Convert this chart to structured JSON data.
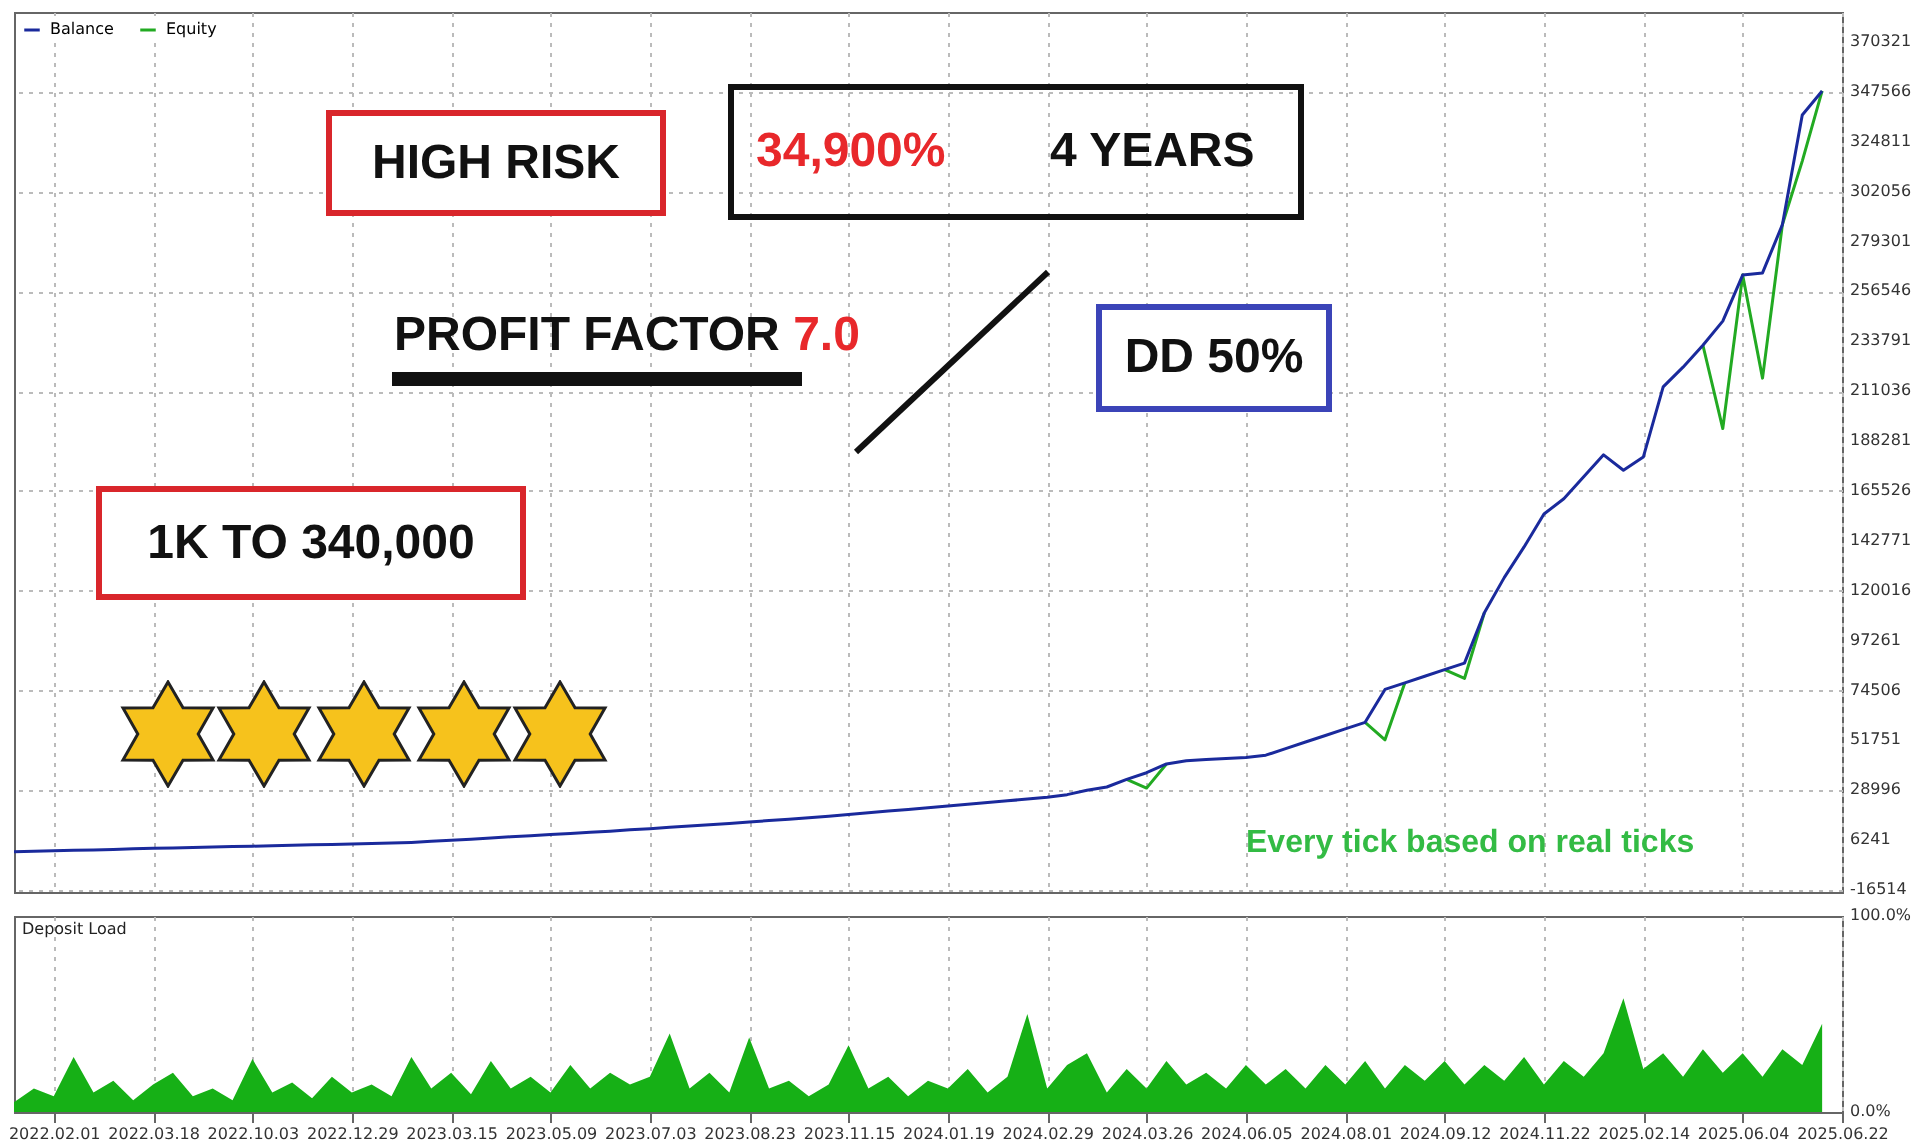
{
  "chart_data": [
    {
      "type": "line",
      "legend": "top left",
      "grid": true,
      "tick_labels": "y",
      "ylim": [
        -17400,
        384000
      ],
      "categories": [
        null,
        null,
        "2022.02.01",
        null,
        null,
        null,
        null,
        "2022.03.18",
        null,
        null,
        null,
        null,
        "2022.10.03",
        null,
        null,
        null,
        null,
        "2022.12.29",
        null,
        null,
        null,
        null,
        "2023.03.15",
        null,
        null,
        null,
        null,
        "2023.05.09",
        null,
        null,
        null,
        null,
        "2023.07.03",
        null,
        null,
        null,
        null,
        "2023.08.23",
        null,
        null,
        null,
        null,
        "2023.11.15",
        null,
        null,
        null,
        null,
        "2024.01.19",
        null,
        null,
        null,
        null,
        "2024.02.29",
        null,
        null,
        null,
        null,
        "2024.03.26",
        null,
        null,
        null,
        null,
        "2024.06.05",
        null,
        null,
        null,
        null,
        "2024.08.01",
        null,
        null,
        null,
        null,
        "2024.09.12",
        null,
        null,
        null,
        null,
        "2024.11.22",
        null,
        null,
        null,
        null,
        "2025.02.14",
        null,
        null,
        null,
        null,
        "2025.06.04",
        null,
        null,
        null,
        null,
        "2025.06.22"
      ],
      "yticks": [
        -16514,
        6241,
        28996,
        51751,
        74506,
        97261,
        120016,
        142771,
        165526,
        188281,
        211036,
        233791,
        256546,
        279301,
        302056,
        324811,
        347566,
        370321
      ],
      "annotations": [
        "HIGH RISK",
        "34,900%",
        "4 YEARS",
        "PROFIT FACTOR 7.0",
        "DD 50%",
        "1K TO 340,000",
        "Every tick based on real ticks"
      ],
      "series": [
        {
          "name": "Balance",
          "color": "#1a2a9c",
          "values": [
            1000,
            1200,
            1400,
            1600,
            1800,
            2000,
            2300,
            2500,
            2700,
            2900,
            3100,
            3300,
            3500,
            3700,
            3900,
            4100,
            4300,
            4500,
            4700,
            4900,
            5200,
            5700,
            6200,
            6700,
            7200,
            7800,
            8300,
            8800,
            9300,
            9800,
            10300,
            11000,
            11500,
            12100,
            12700,
            13300,
            13900,
            14500,
            15200,
            15800,
            16500,
            17200,
            18000,
            18700,
            19500,
            20200,
            21000,
            21800,
            22600,
            23400,
            24200,
            25000,
            25800,
            27000,
            29000,
            30500,
            34000,
            37000,
            41000,
            42500,
            43000,
            43500,
            44000,
            45000,
            48000,
            51000,
            54000,
            57000,
            60000,
            75000,
            78000,
            81000,
            84000,
            87000,
            110000,
            126000,
            140000,
            155000,
            162000,
            172000,
            182000,
            175000,
            181000,
            213000,
            222000,
            232000,
            243000,
            264000,
            265000,
            287000,
            337000,
            348000,
            null
          ]
        },
        {
          "name": "Equity",
          "color": "#22aa22",
          "values": [
            null,
            null,
            null,
            null,
            null,
            null,
            null,
            null,
            null,
            null,
            null,
            null,
            null,
            null,
            null,
            null,
            null,
            null,
            null,
            null,
            null,
            null,
            null,
            null,
            null,
            null,
            null,
            null,
            null,
            null,
            null,
            null,
            null,
            null,
            null,
            null,
            null,
            null,
            null,
            null,
            null,
            null,
            null,
            null,
            null,
            null,
            null,
            null,
            null,
            null,
            null,
            null,
            null,
            null,
            null,
            null,
            34000,
            30000,
            41000,
            null,
            null,
            null,
            null,
            null,
            null,
            null,
            null,
            null,
            60000,
            52000,
            78000,
            null,
            84000,
            80000,
            110000,
            null,
            null,
            null,
            null,
            null,
            null,
            null,
            null,
            null,
            null,
            232000,
            194000,
            264000,
            217000,
            287000,
            316000,
            348000,
            null
          ]
        }
      ]
    },
    {
      "type": "area",
      "title": "Deposit Load",
      "grid": "x",
      "ylim": [
        0,
        100
      ],
      "categories": [
        null,
        null,
        "2022.02.01",
        null,
        null,
        null,
        null,
        "2022.03.18",
        null,
        null,
        null,
        null,
        "2022.10.03",
        null,
        null,
        null,
        null,
        "2022.12.29",
        null,
        null,
        null,
        null,
        "2023.03.15",
        null,
        null,
        null,
        null,
        "2023.05.09",
        null,
        null,
        null,
        null,
        "2023.07.03",
        null,
        null,
        null,
        null,
        "2023.08.23",
        null,
        null,
        null,
        null,
        "2023.11.15",
        null,
        null,
        null,
        null,
        "2024.01.19",
        null,
        null,
        null,
        null,
        "2024.02.29",
        null,
        null,
        null,
        null,
        "2024.03.26",
        null,
        null,
        null,
        null,
        "2024.06.05",
        null,
        null,
        null,
        null,
        "2024.08.01",
        null,
        null,
        null,
        null,
        "2024.09.12",
        null,
        null,
        null,
        null,
        "2024.11.22",
        null,
        null,
        null,
        null,
        "2025.02.14",
        null,
        null,
        null,
        null,
        "2025.06.04",
        null,
        null,
        null,
        null,
        "2025.06.22"
      ],
      "yticks": [
        {
          "value": 0,
          "label": "0.0%"
        },
        {
          "value": 100,
          "label": "100.0%"
        }
      ],
      "series": [
        {
          "color": "#16b016",
          "values": [
            5,
            12,
            8,
            28,
            10,
            16,
            6,
            14,
            20,
            8,
            12,
            6,
            27,
            10,
            15,
            7,
            18,
            10,
            14,
            8,
            28,
            12,
            20,
            9,
            26,
            12,
            18,
            10,
            24,
            12,
            20,
            14,
            18,
            40,
            12,
            20,
            10,
            38,
            12,
            16,
            8,
            14,
            34,
            12,
            18,
            8,
            16,
            12,
            22,
            10,
            18,
            50,
            12,
            24,
            30,
            10,
            22,
            12,
            26,
            14,
            20,
            12,
            24,
            14,
            22,
            12,
            24,
            14,
            26,
            12,
            24,
            16,
            26,
            14,
            24,
            16,
            28,
            14,
            26,
            18,
            30,
            58,
            22,
            30,
            18,
            32,
            20,
            30,
            18,
            32,
            24,
            45,
            null
          ]
        }
      ]
    }
  ]
}
